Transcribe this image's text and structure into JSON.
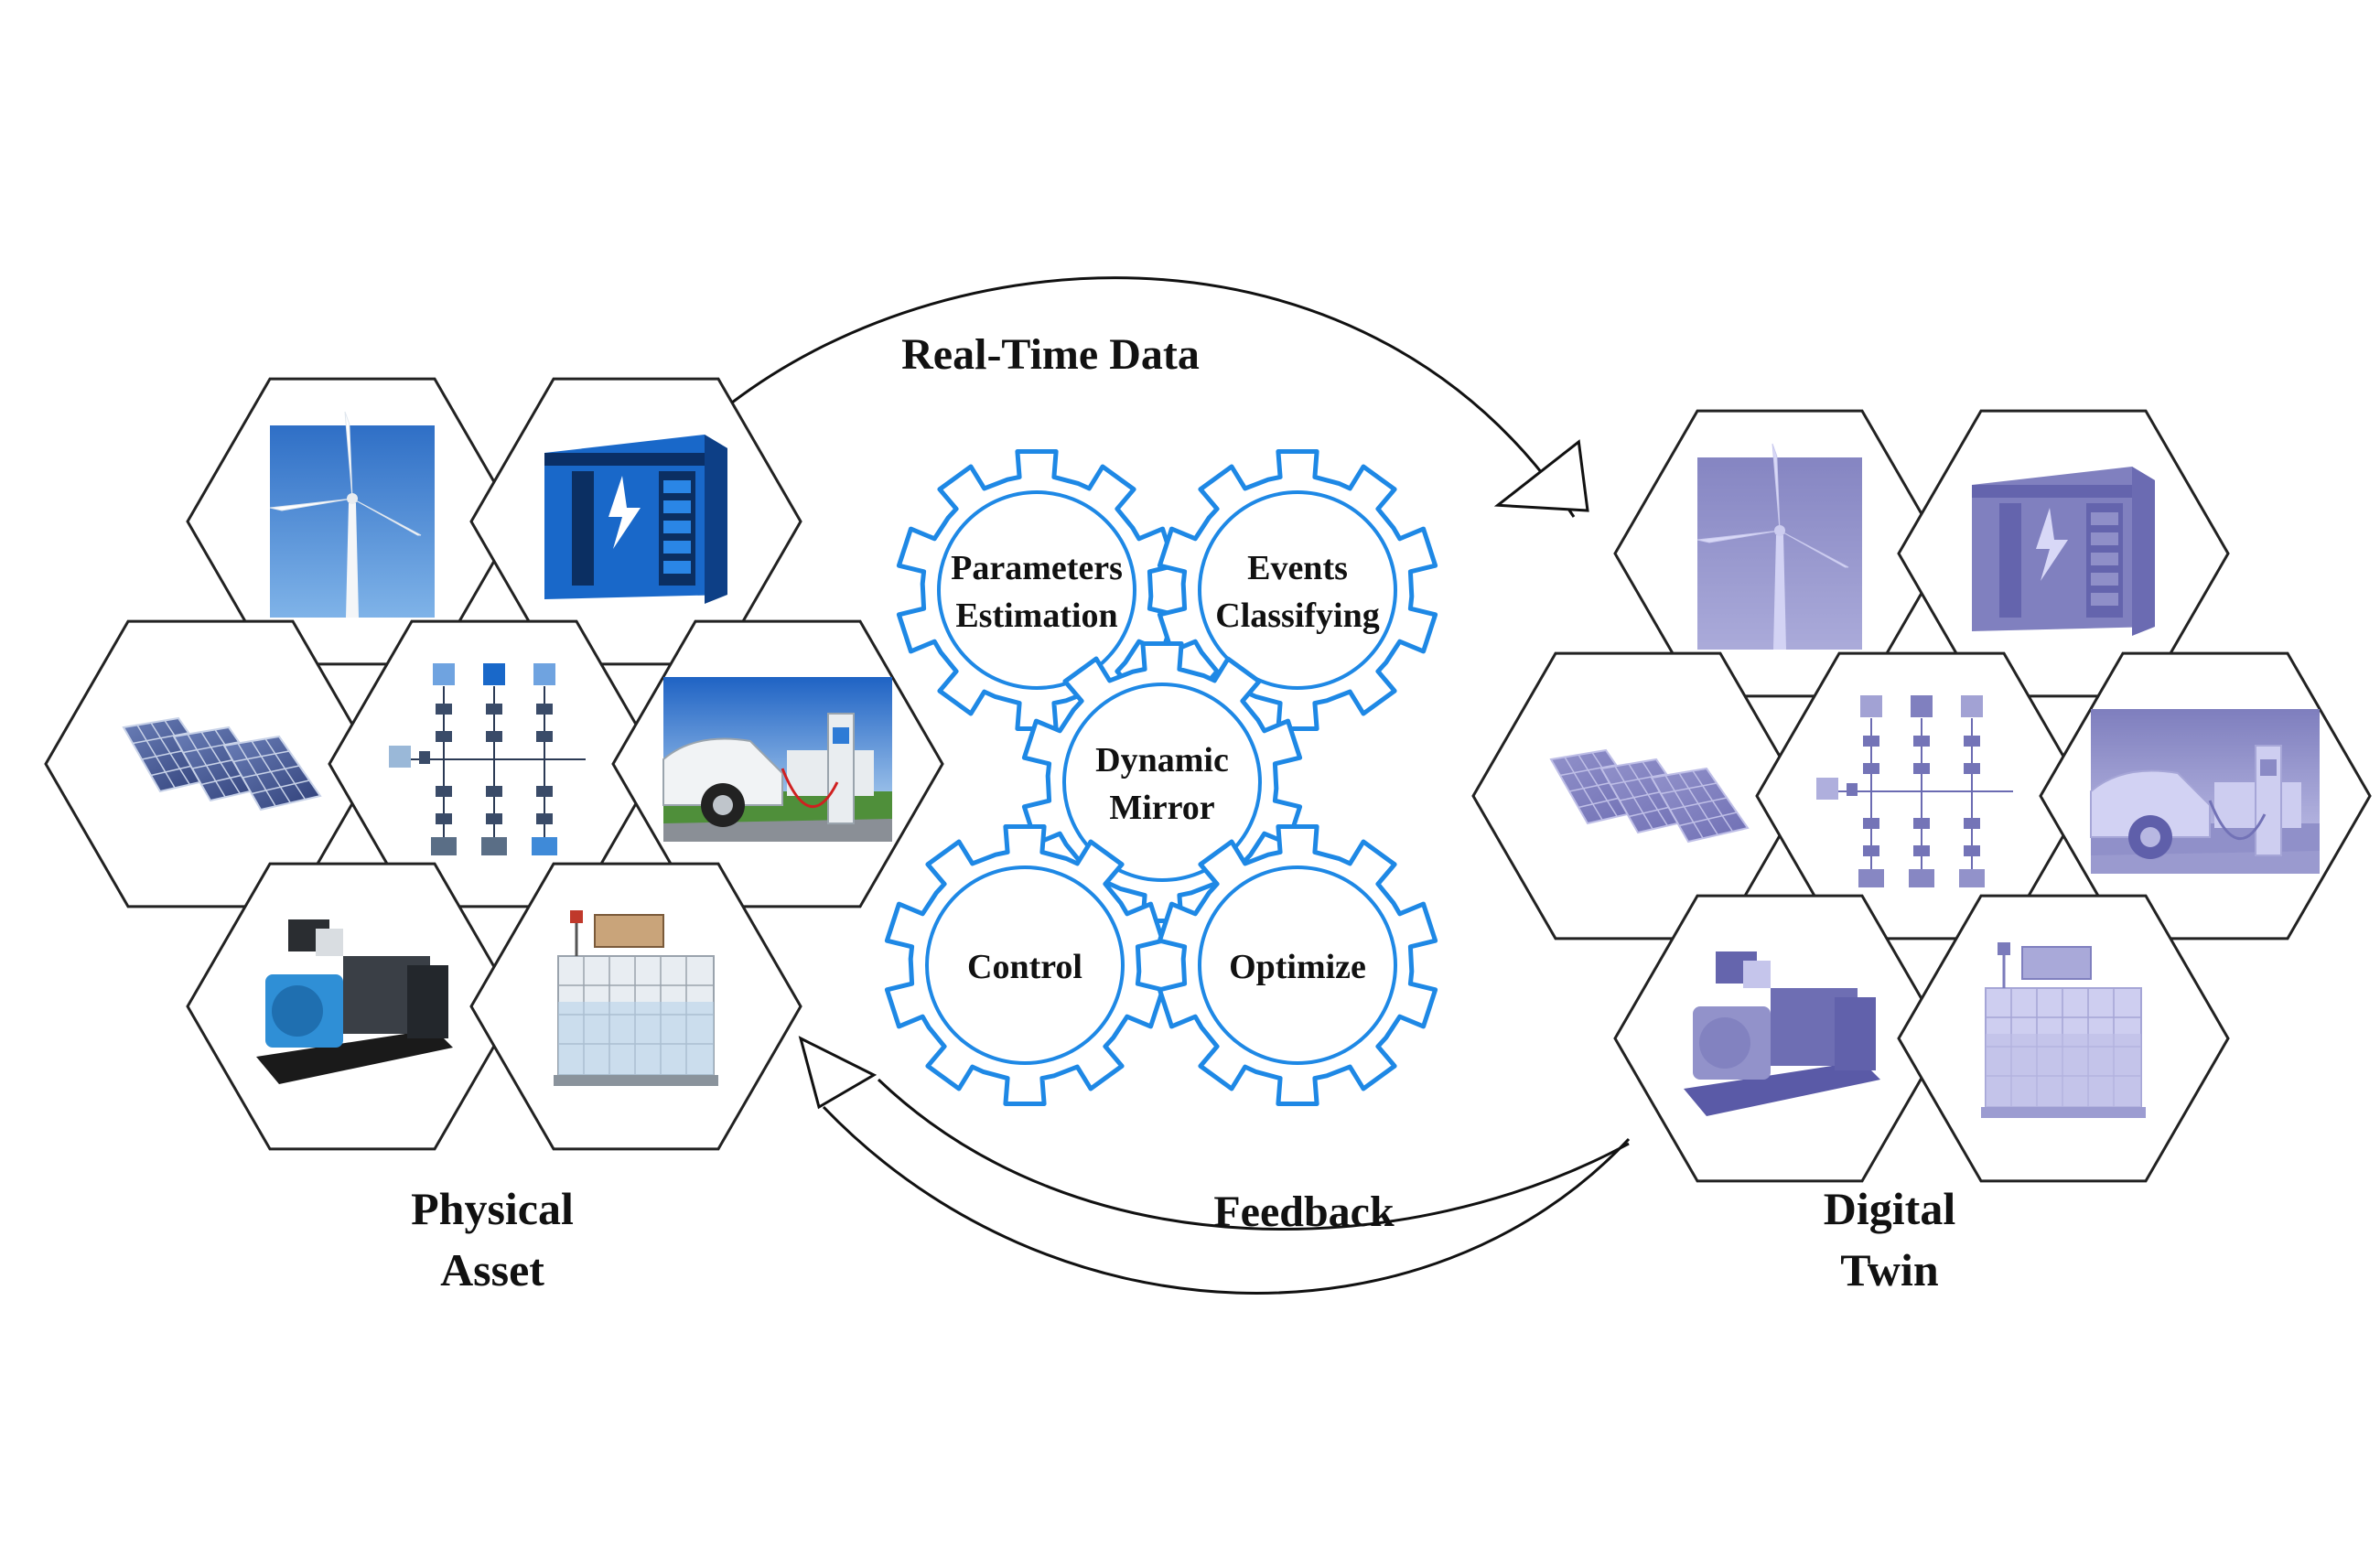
{
  "flows": {
    "real_time": "Real-Time Data",
    "feedback": "Feedback"
  },
  "gears": [
    {
      "id": "params",
      "lines": [
        "Parameters",
        "Estimation"
      ]
    },
    {
      "id": "events",
      "lines": [
        "Events",
        "Classifying"
      ]
    },
    {
      "id": "mirror",
      "lines": [
        "Dynamic",
        "Mirror"
      ]
    },
    {
      "id": "control",
      "lines": [
        "Control"
      ]
    },
    {
      "id": "optimize",
      "lines": [
        "Optimize"
      ]
    }
  ],
  "physical": {
    "lines": [
      "Physical",
      "Asset"
    ]
  },
  "digital": {
    "lines": [
      "Digital",
      "Twin"
    ]
  },
  "colors": {
    "gear": "#1e88e5",
    "hex_stroke": "#222222",
    "twin_tint": "#7b7fe0",
    "sky": "#3a7fd0",
    "panel": "#4a5f9a",
    "storage": "#1a6fd0"
  },
  "asset_icons": [
    "wind-turbine",
    "battery-storage",
    "solar-panel",
    "microgrid-network",
    "electric-vehicle-charger",
    "diesel-generator",
    "hydrogen-tank"
  ]
}
